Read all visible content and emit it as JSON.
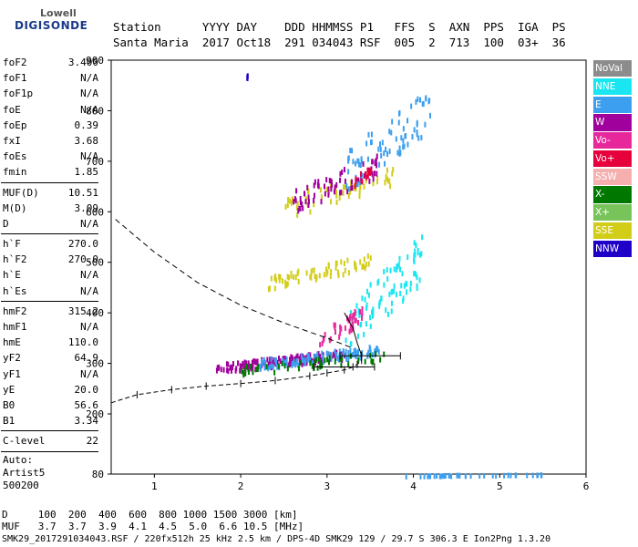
{
  "logo": {
    "line1": "Lowell",
    "line2": "DIGISONDE"
  },
  "header": {
    "line1": "Station      YYYY DAY    DDD HHMMSS P1   FFS  S  AXN  PPS  IGA  PS",
    "line2": "Santa Maria  2017 Oct18  291 034043 RSF  005  2  713  100  03+  36"
  },
  "params_group1": [
    {
      "k": "foF2",
      "v": "3.400"
    },
    {
      "k": "foF1",
      "v": "N/A"
    },
    {
      "k": "foF1p",
      "v": "N/A"
    },
    {
      "k": "foE",
      "v": "N/A"
    },
    {
      "k": "foEp",
      "v": "0.39"
    },
    {
      "k": "fxI",
      "v": "3.68"
    },
    {
      "k": "foEs",
      "v": "N/A"
    },
    {
      "k": "fmin",
      "v": "1.85"
    }
  ],
  "params_group2": [
    {
      "k": "MUF(D)",
      "v": "10.51"
    },
    {
      "k": "M(D)",
      "v": "3.09"
    },
    {
      "k": "D",
      "v": "N/A"
    }
  ],
  "params_group3": [
    {
      "k": "h`F",
      "v": "270.0"
    },
    {
      "k": "h`F2",
      "v": "270.0"
    },
    {
      "k": "h`E",
      "v": "N/A"
    },
    {
      "k": "h`Es",
      "v": "N/A"
    }
  ],
  "params_group4": [
    {
      "k": "hmF2",
      "v": "315.2"
    },
    {
      "k": "hmF1",
      "v": "N/A"
    },
    {
      "k": "hmE",
      "v": "110.0"
    },
    {
      "k": "yF2",
      "v": "64.9"
    },
    {
      "k": "yF1",
      "v": "N/A"
    },
    {
      "k": "yE",
      "v": "20.0"
    },
    {
      "k": "B0",
      "v": "56.6"
    },
    {
      "k": "B1",
      "v": "3.34"
    }
  ],
  "params_group5": [
    {
      "k": "C-level",
      "v": "22"
    }
  ],
  "autoscale": {
    "l1": "Auto:",
    "l2": "Artist5",
    "l3": "500200"
  },
  "legend": [
    {
      "label": "NoVal",
      "color": "#8c8c8c"
    },
    {
      "label": "NNE",
      "color": "#19e6f0"
    },
    {
      "label": "E",
      "color": "#3c9ff0"
    },
    {
      "label": "W",
      "color": "#a0009b"
    },
    {
      "label": "Vo-",
      "color": "#e6289b"
    },
    {
      "label": "Vo+",
      "color": "#e6003c"
    },
    {
      "label": "SSW",
      "color": "#f5afaf"
    },
    {
      "label": "X-",
      "color": "#007800"
    },
    {
      "label": "X+",
      "color": "#78c35a"
    },
    {
      "label": "SSE",
      "color": "#d2cd19"
    },
    {
      "label": "NNW",
      "color": "#1e00c8"
    }
  ],
  "bottom": {
    "line1": "D     100  200  400  600  800 1000 1500 3000 [km]",
    "line2": "MUF   3.7  3.7  3.9  4.1  4.5  5.0  6.6 10.5 [MHz]"
  },
  "footer": "SMK29_2017291034043.RSF / 220fx512h 25 kHz 2.5 km / DPS-4D SMK29 129 / 29.7 S 306.3 E Ion2Png 1.3.20",
  "chart_data": {
    "type": "scatter",
    "xlim": [
      0.5,
      6
    ],
    "ylim": [
      80,
      900
    ],
    "x_ticks": [
      1,
      2,
      3,
      4,
      5,
      6
    ],
    "y_ticks": [
      80,
      200,
      300,
      400,
      500,
      600,
      700,
      800,
      900
    ],
    "clusters": [
      {
        "color": "#a0009b",
        "x0": 1.7,
        "x1": 3.2,
        "h0": 285,
        "h1": 330,
        "n": 140
      },
      {
        "color": "#3c9ff0",
        "x0": 2.2,
        "x1": 3.6,
        "h0": 292,
        "h1": 340,
        "n": 110
      },
      {
        "color": "#19e6f0",
        "x0": 3.2,
        "x1": 4.1,
        "h0": 320,
        "h1": 560,
        "n": 90
      },
      {
        "color": "#007800",
        "x0": 2.0,
        "x1": 3.7,
        "h0": 280,
        "h1": 330,
        "n": 50
      },
      {
        "color": "#d2cd19",
        "x0": 2.3,
        "x1": 3.5,
        "h0": 450,
        "h1": 520,
        "n": 70
      },
      {
        "color": "#d2cd19",
        "x0": 2.5,
        "x1": 3.8,
        "h0": 590,
        "h1": 700,
        "n": 60
      },
      {
        "color": "#a0009b",
        "x0": 2.6,
        "x1": 3.6,
        "h0": 600,
        "h1": 720,
        "n": 70
      },
      {
        "color": "#3c9ff0",
        "x0": 3.2,
        "x1": 4.2,
        "h0": 640,
        "h1": 850,
        "n": 80
      },
      {
        "color": "#e6003c",
        "x0": 3.3,
        "x1": 3.5,
        "h0": 650,
        "h1": 700,
        "n": 15
      },
      {
        "color": "#e6289b",
        "x0": 2.9,
        "x1": 3.4,
        "h0": 330,
        "h1": 420,
        "n": 40
      },
      {
        "color": "#1e00c8",
        "x0": 2.05,
        "x1": 2.08,
        "h0": 860,
        "h1": 880,
        "n": 5
      },
      {
        "color": "#3c9ff0",
        "x0": 3.9,
        "x1": 5.5,
        "h0": 80,
        "h1": 84,
        "n": 40
      }
    ],
    "trace_x": [
      0.5,
      0.8,
      1.2,
      1.6,
      2.0,
      2.4,
      2.8,
      3.0,
      3.2,
      3.3,
      3.35,
      3.4,
      3.4
    ],
    "trace_y": [
      222,
      238,
      248,
      255,
      260,
      266,
      275,
      281,
      287,
      293,
      298,
      306,
      316
    ],
    "profile_x": [
      3.4,
      3.35,
      3.3,
      3.2
    ],
    "profile_y": [
      316,
      340,
      370,
      400
    ],
    "dashed_x": [
      0.55,
      1.0,
      1.5,
      2.0,
      2.5,
      3.0,
      3.3
    ],
    "dashed_y": [
      585,
      520,
      460,
      415,
      380,
      350,
      330
    ],
    "error_bars_x": [
      3.5,
      3.2
    ],
    "error_bars_y": [
      315,
      293
    ]
  }
}
